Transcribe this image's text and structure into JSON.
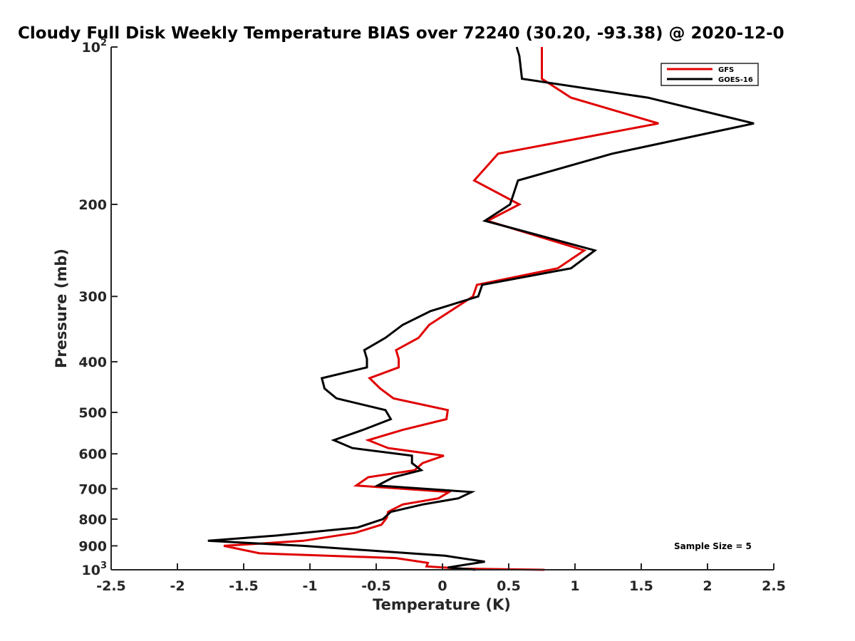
{
  "chart_data": {
    "type": "line",
    "title": "Cloudy Full Disk Weekly Temperature BIAS over 72240 (30.20, -93.38) @ 2020-12-0",
    "xlabel": "Temperature (K)",
    "ylabel": "Pressure (mb)",
    "xlim": [
      -2.5,
      2.5
    ],
    "ylim": [
      100,
      1000
    ],
    "yscale": "log",
    "y_reversed": true,
    "x_ticks": [
      "-2.5",
      "-2",
      "-1.5",
      "-1",
      "-0.5",
      "0",
      "0.5",
      "1",
      "1.5",
      "2",
      "2.5"
    ],
    "y_ticks": [
      {
        "value": 100,
        "base": "10",
        "exp": "2"
      },
      {
        "value": 200,
        "label": "200"
      },
      {
        "value": 300,
        "label": "300"
      },
      {
        "value": 400,
        "label": "400"
      },
      {
        "value": 500,
        "label": "500"
      },
      {
        "value": 600,
        "label": "600"
      },
      {
        "value": 700,
        "label": "700"
      },
      {
        "value": 800,
        "label": "800"
      },
      {
        "value": 900,
        "label": "900"
      },
      {
        "value": 1000,
        "base": "10",
        "exp": "3"
      }
    ],
    "grid": false,
    "legend_position": "top-right",
    "annotation": "Sample Size = 5",
    "series": [
      {
        "name": "GFS",
        "color": "#e00000",
        "x": [
          0.75,
          0.75,
          0.75,
          0.97,
          1.63,
          0.42,
          0.24,
          0.58,
          0.34,
          1.07,
          0.87,
          0.26,
          0.23,
          0.06,
          -0.1,
          -0.18,
          -0.35,
          -0.33,
          -0.33,
          -0.55,
          -0.47,
          -0.37,
          0.04,
          0.03,
          -0.3,
          -0.56,
          -0.41,
          0.01,
          -0.15,
          -0.21,
          -0.56,
          -0.65,
          0.05,
          -0.03,
          -0.3,
          -0.41,
          -0.42,
          -0.46,
          -0.66,
          -1.05,
          -1.65,
          -1.38,
          -0.35,
          -0.11,
          -0.12,
          0.15,
          0.77
        ],
        "y": [
          100,
          105,
          115,
          125,
          140,
          160,
          180,
          200,
          215,
          245,
          265,
          285,
          300,
          320,
          340,
          360,
          380,
          395,
          410,
          430,
          450,
          470,
          495,
          515,
          540,
          565,
          585,
          605,
          625,
          645,
          665,
          690,
          710,
          730,
          750,
          775,
          795,
          820,
          850,
          880,
          900,
          930,
          950,
          970,
          985,
          995,
          1000
        ]
      },
      {
        "name": "GOES-16",
        "color": "#000000",
        "x": [
          0.56,
          0.58,
          0.6,
          1.55,
          2.35,
          1.28,
          0.57,
          0.51,
          0.32,
          1.15,
          0.97,
          0.3,
          0.27,
          -0.09,
          -0.3,
          -0.43,
          -0.59,
          -0.57,
          -0.57,
          -0.91,
          -0.89,
          -0.8,
          -0.43,
          -0.39,
          -0.6,
          -0.82,
          -0.68,
          -0.23,
          -0.23,
          -0.16,
          -0.37,
          -0.49,
          0.22,
          0.12,
          -0.15,
          -0.39,
          -0.45,
          -0.64,
          -1.25,
          -1.77,
          -1.05,
          0.02,
          0.32,
          0.04,
          0.25
        ],
        "y": [
          100,
          104,
          115,
          125,
          140,
          160,
          180,
          200,
          215,
          245,
          265,
          285,
          300,
          320,
          340,
          360,
          380,
          395,
          410,
          430,
          450,
          470,
          495,
          515,
          540,
          565,
          585,
          605,
          625,
          645,
          665,
          690,
          710,
          730,
          750,
          775,
          800,
          830,
          860,
          880,
          900,
          940,
          965,
          990,
          1000
        ]
      }
    ]
  }
}
